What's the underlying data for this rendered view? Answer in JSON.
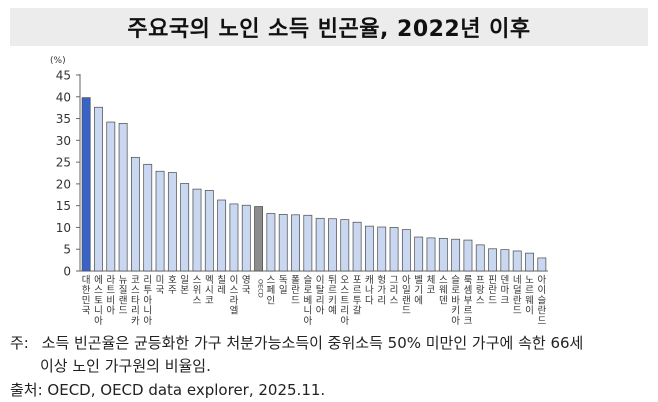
{
  "title": "주요국의 노인 소득 빈곤율, 2022년 이후",
  "notes": {
    "prefix": "주:",
    "line1": "소득 빈곤율은 균등화한 가구 처분가능소득이 중위소득 50% 미만인 가구에 속한 66세",
    "line2": "이상 노인 가구원의 비율임.",
    "source": "출처: OECD, OECD data explorer, 2025.11."
  },
  "colors": {
    "korea": "#3a63c7",
    "oecd": "#8c8c8c",
    "others": "#c9d7f1",
    "border": "#4a4a4a"
  },
  "chart_data": {
    "type": "bar",
    "unit": "(%)",
    "ylim": [
      0,
      45
    ],
    "yticks": [
      0,
      5,
      10,
      15,
      20,
      25,
      30,
      35,
      40,
      45
    ],
    "grid": false,
    "categories": [
      "대한민국",
      "에스토니아",
      "라트비아",
      "뉴질랜드",
      "코스타리카",
      "리투아니아",
      "미국",
      "호주",
      "일본",
      "스위스",
      "멕시코",
      "칠레",
      "이스라엘",
      "영국",
      "OECD",
      "스페인",
      "독일",
      "폴란드",
      "슬로베니아",
      "이탈리아",
      "튀르키예",
      "오스트리아",
      "포르투갈",
      "캐나다",
      "헝가리",
      "그리스",
      "아일랜드",
      "벨기에",
      "체코",
      "스웨덴",
      "슬로바키아",
      "룩셈부르크",
      "프랑스",
      "핀란드",
      "덴마크",
      "네덜란드",
      "노르웨이",
      "아이슬란드"
    ],
    "values": [
      39.8,
      37.6,
      34.2,
      33.9,
      26.1,
      24.5,
      22.9,
      22.6,
      20.1,
      18.8,
      18.5,
      16.3,
      15.4,
      15.1,
      14.8,
      13.2,
      13.0,
      12.9,
      12.8,
      12.1,
      12.0,
      11.8,
      11.2,
      10.3,
      10.1,
      10.0,
      9.5,
      7.8,
      7.6,
      7.5,
      7.3,
      7.1,
      6.0,
      5.1,
      4.9,
      4.6,
      4.1,
      3.0
    ]
  }
}
